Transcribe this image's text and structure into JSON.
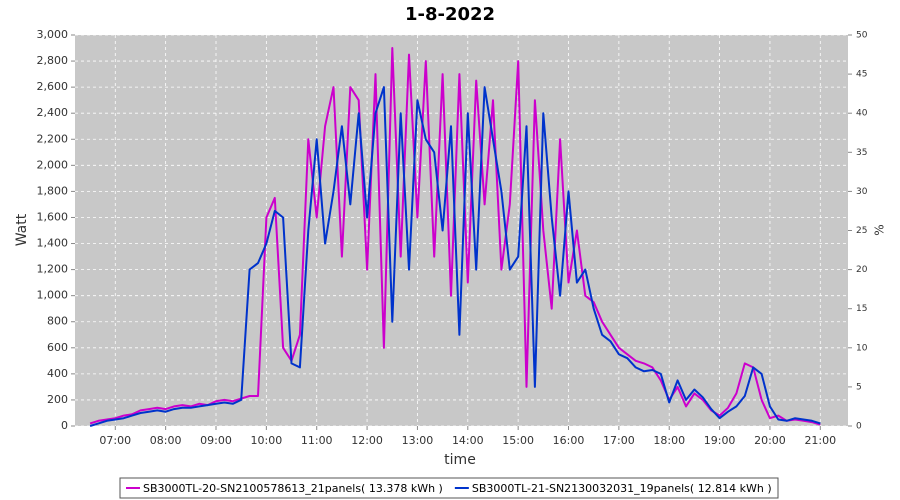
{
  "chart_data": {
    "type": "line",
    "title": "1-8-2022",
    "xlabel": "time",
    "ylabel": "Watt",
    "y2label": "%",
    "x": [
      "06:30",
      "06:40",
      "06:50",
      "07:00",
      "07:10",
      "07:20",
      "07:30",
      "07:40",
      "07:50",
      "08:00",
      "08:10",
      "08:20",
      "08:30",
      "08:40",
      "08:50",
      "09:00",
      "09:10",
      "09:20",
      "09:30",
      "09:40",
      "09:50",
      "10:00",
      "10:10",
      "10:20",
      "10:30",
      "10:40",
      "10:50",
      "11:00",
      "11:10",
      "11:20",
      "11:30",
      "11:40",
      "11:50",
      "12:00",
      "12:10",
      "12:20",
      "12:30",
      "12:40",
      "12:50",
      "13:00",
      "13:10",
      "13:20",
      "13:30",
      "13:40",
      "13:50",
      "14:00",
      "14:10",
      "14:20",
      "14:30",
      "14:40",
      "14:50",
      "15:00",
      "15:10",
      "15:20",
      "15:30",
      "15:40",
      "15:50",
      "16:00",
      "16:10",
      "16:20",
      "16:30",
      "16:40",
      "16:50",
      "17:00",
      "17:10",
      "17:20",
      "17:30",
      "17:40",
      "17:50",
      "18:00",
      "18:10",
      "18:20",
      "18:30",
      "18:40",
      "18:50",
      "19:00",
      "19:10",
      "19:20",
      "19:30",
      "19:40",
      "19:50",
      "20:00",
      "20:10",
      "20:20",
      "20:30",
      "20:40",
      "20:50",
      "21:00"
    ],
    "series": [
      {
        "name": "SB3000TL-20-SN2100578613_21panels( 13.378 kWh )",
        "color": "#cc00cc",
        "values": [
          20,
          40,
          50,
          60,
          80,
          90,
          120,
          130,
          140,
          130,
          150,
          160,
          150,
          170,
          160,
          190,
          200,
          190,
          210,
          230,
          230,
          1600,
          1750,
          600,
          500,
          700,
          2200,
          1600,
          2300,
          2600,
          1300,
          2600,
          2500,
          1200,
          2700,
          600,
          2900,
          1300,
          2850,
          1600,
          2800,
          1300,
          2700,
          1000,
          2700,
          1100,
          2650,
          1700,
          2500,
          1200,
          1700,
          2800,
          300,
          2500,
          1500,
          900,
          2200,
          1100,
          1500,
          1000,
          950,
          800,
          700,
          600,
          550,
          500,
          480,
          450,
          350,
          200,
          300,
          150,
          250,
          200,
          120,
          80,
          140,
          250,
          480,
          450,
          200,
          60,
          80,
          40,
          50,
          40,
          30,
          10
        ]
      },
      {
        "name": "SB3000TL-21-SN2130032031_19panels( 12.814 kWh )",
        "color": "#0033cc",
        "values": [
          0,
          20,
          40,
          50,
          60,
          80,
          100,
          110,
          120,
          110,
          130,
          140,
          140,
          150,
          160,
          170,
          180,
          170,
          200,
          1200,
          1250,
          1400,
          1650,
          1600,
          480,
          450,
          1500,
          2200,
          1400,
          1800,
          2300,
          1700,
          2400,
          1600,
          2400,
          2600,
          800,
          2400,
          1200,
          2500,
          2200,
          2100,
          1500,
          2300,
          700,
          2400,
          1200,
          2600,
          2200,
          1800,
          1200,
          1300,
          2300,
          300,
          2400,
          1600,
          1000,
          1800,
          1100,
          1200,
          900,
          700,
          650,
          550,
          520,
          450,
          420,
          430,
          400,
          180,
          350,
          200,
          280,
          220,
          130,
          60,
          110,
          150,
          230,
          450,
          400,
          150,
          50,
          40,
          60,
          50,
          40,
          20
        ]
      }
    ],
    "xlim": [
      "06:12",
      "21:33"
    ],
    "xticks": [
      "07:00",
      "08:00",
      "09:00",
      "10:00",
      "11:00",
      "12:00",
      "13:00",
      "14:00",
      "15:00",
      "16:00",
      "17:00",
      "18:00",
      "19:00",
      "20:00",
      "21:00"
    ],
    "ylim": [
      0,
      3000
    ],
    "yticks": [
      0,
      200,
      400,
      600,
      800,
      {
        "value": 1000,
        "label": "1,000"
      },
      {
        "value": 1200,
        "label": "1,200"
      },
      {
        "value": 1400,
        "label": "1,400"
      },
      {
        "value": 1600,
        "label": "1,600"
      },
      {
        "value": 1800,
        "label": "1,800"
      },
      {
        "value": 2000,
        "label": "2,000"
      },
      {
        "value": 2200,
        "label": "2,200"
      },
      {
        "value": 2400,
        "label": "2,400"
      },
      {
        "value": 2600,
        "label": "2,600"
      },
      {
        "value": 2800,
        "label": "2,800"
      },
      {
        "value": 3000,
        "label": "3,000"
      }
    ],
    "y2lim": [
      0,
      50
    ],
    "y2ticks": [
      0,
      5,
      10,
      15,
      20,
      25,
      30,
      35,
      40,
      45,
      50
    ],
    "grid": true,
    "legend": "bottom"
  }
}
